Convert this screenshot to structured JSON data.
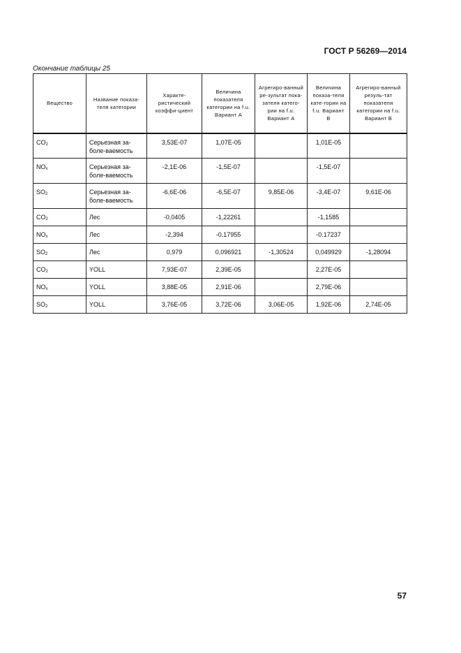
{
  "header": {
    "standard": "ГОСТ Р 56269—2014"
  },
  "caption": "Окончание таблицы 25",
  "table": {
    "columns": [
      "Вещество",
      "Название показа-теля категории",
      "Характе-ристический коэффи-циент",
      "Величина показателя категории на f.u. Вариант А",
      "Агрегиро-ванный ре-зультат пока-зателя катего-рии на f.u. Вариант А",
      "Величина показа-теля кате-гории на f.u. Вариант В",
      "Агрегиро-ванный резуль-тат показателя категории на f.u. Вариант В"
    ],
    "rows": [
      {
        "sub": "CO",
        "subscript": "2",
        "cat": "Серьезная за-боле-ваемость",
        "c": "3,53E-07",
        "a": "1,07E-05",
        "aa": "",
        "b": "1,01E-05",
        "ab": ""
      },
      {
        "sub": "NO",
        "subscript": "x",
        "cat": "Серьезная за-боле-ваемость",
        "c": "-2,1E-06",
        "a": "-1,5E-07",
        "aa": "",
        "b": "-1,5E-07",
        "ab": ""
      },
      {
        "sub": "SO",
        "subscript": "2",
        "cat": "Серьезная за-боле-ваемость",
        "c": "-6,6E-06",
        "a": "-6,5E-07",
        "aa": "9,85E-06",
        "b": "-3,4E-07",
        "ab": "9,61E-06"
      },
      {
        "sub": "CO",
        "subscript": "2",
        "cat": "Лес",
        "c": "-0,0405",
        "a": "-1,22261",
        "aa": "",
        "b": "-1,1585",
        "ab": ""
      },
      {
        "sub": "NO",
        "subscript": "x",
        "cat": "Лес",
        "c": "-2,394",
        "a": "-0,17955",
        "aa": "",
        "b": "-0.17237",
        "ab": ""
      },
      {
        "sub": "SO",
        "subscript": "2",
        "cat": "Лес",
        "c": "0,979",
        "a": "0,096921",
        "aa": "-1,30524",
        "b": "0,049929",
        "ab": "-1,28094"
      },
      {
        "sub": "CO",
        "subscript": "2",
        "cat": "YOLL",
        "c": "7,93E-07",
        "a": "2,39E-05",
        "aa": "",
        "b": "2,27E-05",
        "ab": ""
      },
      {
        "sub": "NO",
        "subscript": "x",
        "cat": "YOLL",
        "c": "3,88E-05",
        "a": "2,91E-06",
        "aa": "",
        "b": "2,79E-06",
        "ab": ""
      },
      {
        "sub": "SO",
        "subscript": "2",
        "cat": "YOLL",
        "c": "3,76E-05",
        "a": "3,72E-06",
        "aa": "3,06E-05",
        "b": "1,92E-06",
        "ab": "2,74E-05"
      }
    ]
  },
  "page_number": "57"
}
